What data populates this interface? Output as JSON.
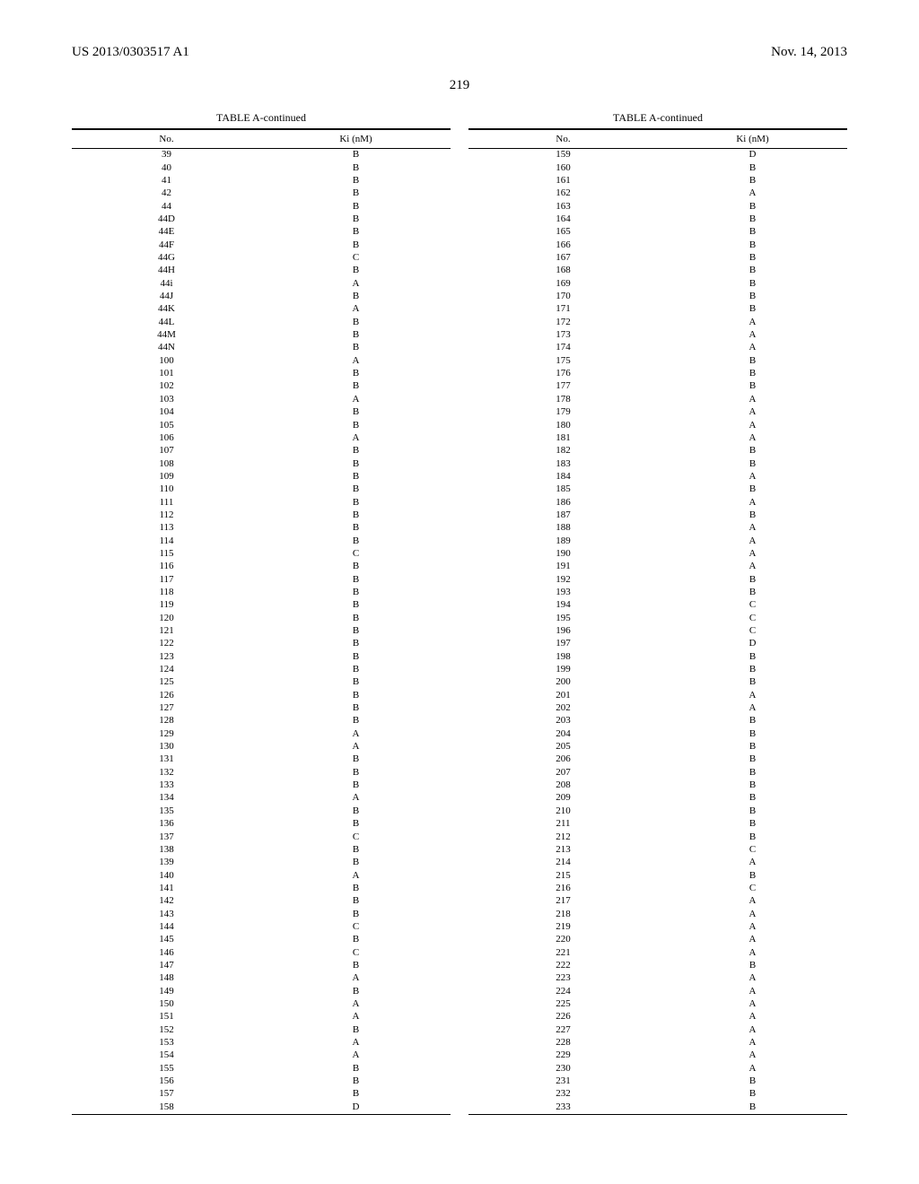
{
  "header": {
    "left": "US 2013/0303517 A1",
    "right": "Nov. 14, 2013"
  },
  "pageNumber": "219",
  "table": {
    "caption": "TABLE A-continued",
    "columns": {
      "no": "No.",
      "ki": "Ki (nM)"
    },
    "left": [
      {
        "no": "39",
        "ki": "B"
      },
      {
        "no": "40",
        "ki": "B"
      },
      {
        "no": "41",
        "ki": "B"
      },
      {
        "no": "42",
        "ki": "B"
      },
      {
        "no": "44",
        "ki": "B"
      },
      {
        "no": "44D",
        "ki": "B"
      },
      {
        "no": "44E",
        "ki": "B"
      },
      {
        "no": "44F",
        "ki": "B"
      },
      {
        "no": "44G",
        "ki": "C"
      },
      {
        "no": "44H",
        "ki": "B"
      },
      {
        "no": "44i",
        "ki": "A"
      },
      {
        "no": "44J",
        "ki": "B"
      },
      {
        "no": "44K",
        "ki": "A"
      },
      {
        "no": "44L",
        "ki": "B"
      },
      {
        "no": "44M",
        "ki": "B"
      },
      {
        "no": "44N",
        "ki": "B"
      },
      {
        "no": "100",
        "ki": "A"
      },
      {
        "no": "101",
        "ki": "B"
      },
      {
        "no": "102",
        "ki": "B"
      },
      {
        "no": "103",
        "ki": "A"
      },
      {
        "no": "104",
        "ki": "B"
      },
      {
        "no": "105",
        "ki": "B"
      },
      {
        "no": "106",
        "ki": "A"
      },
      {
        "no": "107",
        "ki": "B"
      },
      {
        "no": "108",
        "ki": "B"
      },
      {
        "no": "109",
        "ki": "B"
      },
      {
        "no": "110",
        "ki": "B"
      },
      {
        "no": "111",
        "ki": "B"
      },
      {
        "no": "112",
        "ki": "B"
      },
      {
        "no": "113",
        "ki": "B"
      },
      {
        "no": "114",
        "ki": "B"
      },
      {
        "no": "115",
        "ki": "C"
      },
      {
        "no": "116",
        "ki": "B"
      },
      {
        "no": "117",
        "ki": "B"
      },
      {
        "no": "118",
        "ki": "B"
      },
      {
        "no": "119",
        "ki": "B"
      },
      {
        "no": "120",
        "ki": "B"
      },
      {
        "no": "121",
        "ki": "B"
      },
      {
        "no": "122",
        "ki": "B"
      },
      {
        "no": "123",
        "ki": "B"
      },
      {
        "no": "124",
        "ki": "B"
      },
      {
        "no": "125",
        "ki": "B"
      },
      {
        "no": "126",
        "ki": "B"
      },
      {
        "no": "127",
        "ki": "B"
      },
      {
        "no": "128",
        "ki": "B"
      },
      {
        "no": "129",
        "ki": "A"
      },
      {
        "no": "130",
        "ki": "A"
      },
      {
        "no": "131",
        "ki": "B"
      },
      {
        "no": "132",
        "ki": "B"
      },
      {
        "no": "133",
        "ki": "B"
      },
      {
        "no": "134",
        "ki": "A"
      },
      {
        "no": "135",
        "ki": "B"
      },
      {
        "no": "136",
        "ki": "B"
      },
      {
        "no": "137",
        "ki": "C"
      },
      {
        "no": "138",
        "ki": "B"
      },
      {
        "no": "139",
        "ki": "B"
      },
      {
        "no": "140",
        "ki": "A"
      },
      {
        "no": "141",
        "ki": "B"
      },
      {
        "no": "142",
        "ki": "B"
      },
      {
        "no": "143",
        "ki": "B"
      },
      {
        "no": "144",
        "ki": "C"
      },
      {
        "no": "145",
        "ki": "B"
      },
      {
        "no": "146",
        "ki": "C"
      },
      {
        "no": "147",
        "ki": "B"
      },
      {
        "no": "148",
        "ki": "A"
      },
      {
        "no": "149",
        "ki": "B"
      },
      {
        "no": "150",
        "ki": "A"
      },
      {
        "no": "151",
        "ki": "A"
      },
      {
        "no": "152",
        "ki": "B"
      },
      {
        "no": "153",
        "ki": "A"
      },
      {
        "no": "154",
        "ki": "A"
      },
      {
        "no": "155",
        "ki": "B"
      },
      {
        "no": "156",
        "ki": "B"
      },
      {
        "no": "157",
        "ki": "B"
      },
      {
        "no": "158",
        "ki": "D"
      }
    ],
    "right": [
      {
        "no": "159",
        "ki": "D"
      },
      {
        "no": "160",
        "ki": "B"
      },
      {
        "no": "161",
        "ki": "B"
      },
      {
        "no": "162",
        "ki": "A"
      },
      {
        "no": "163",
        "ki": "B"
      },
      {
        "no": "164",
        "ki": "B"
      },
      {
        "no": "165",
        "ki": "B"
      },
      {
        "no": "166",
        "ki": "B"
      },
      {
        "no": "167",
        "ki": "B"
      },
      {
        "no": "168",
        "ki": "B"
      },
      {
        "no": "169",
        "ki": "B"
      },
      {
        "no": "170",
        "ki": "B"
      },
      {
        "no": "171",
        "ki": "B"
      },
      {
        "no": "172",
        "ki": "A"
      },
      {
        "no": "173",
        "ki": "A"
      },
      {
        "no": "174",
        "ki": "A"
      },
      {
        "no": "175",
        "ki": "B"
      },
      {
        "no": "176",
        "ki": "B"
      },
      {
        "no": "177",
        "ki": "B"
      },
      {
        "no": "178",
        "ki": "A"
      },
      {
        "no": "179",
        "ki": "A"
      },
      {
        "no": "180",
        "ki": "A"
      },
      {
        "no": "181",
        "ki": "A"
      },
      {
        "no": "182",
        "ki": "B"
      },
      {
        "no": "183",
        "ki": "B"
      },
      {
        "no": "184",
        "ki": "A"
      },
      {
        "no": "185",
        "ki": "B"
      },
      {
        "no": "186",
        "ki": "A"
      },
      {
        "no": "187",
        "ki": "B"
      },
      {
        "no": "188",
        "ki": "A"
      },
      {
        "no": "189",
        "ki": "A"
      },
      {
        "no": "190",
        "ki": "A"
      },
      {
        "no": "191",
        "ki": "A"
      },
      {
        "no": "192",
        "ki": "B"
      },
      {
        "no": "193",
        "ki": "B"
      },
      {
        "no": "194",
        "ki": "C"
      },
      {
        "no": "195",
        "ki": "C"
      },
      {
        "no": "196",
        "ki": "C"
      },
      {
        "no": "197",
        "ki": "D"
      },
      {
        "no": "198",
        "ki": "B"
      },
      {
        "no": "199",
        "ki": "B"
      },
      {
        "no": "200",
        "ki": "B"
      },
      {
        "no": "201",
        "ki": "A"
      },
      {
        "no": "202",
        "ki": "A"
      },
      {
        "no": "203",
        "ki": "B"
      },
      {
        "no": "204",
        "ki": "B"
      },
      {
        "no": "205",
        "ki": "B"
      },
      {
        "no": "206",
        "ki": "B"
      },
      {
        "no": "207",
        "ki": "B"
      },
      {
        "no": "208",
        "ki": "B"
      },
      {
        "no": "209",
        "ki": "B"
      },
      {
        "no": "210",
        "ki": "B"
      },
      {
        "no": "211",
        "ki": "B"
      },
      {
        "no": "212",
        "ki": "B"
      },
      {
        "no": "213",
        "ki": "C"
      },
      {
        "no": "214",
        "ki": "A"
      },
      {
        "no": "215",
        "ki": "B"
      },
      {
        "no": "216",
        "ki": "C"
      },
      {
        "no": "217",
        "ki": "A"
      },
      {
        "no": "218",
        "ki": "A"
      },
      {
        "no": "219",
        "ki": "A"
      },
      {
        "no": "220",
        "ki": "A"
      },
      {
        "no": "221",
        "ki": "A"
      },
      {
        "no": "222",
        "ki": "B"
      },
      {
        "no": "223",
        "ki": "A"
      },
      {
        "no": "224",
        "ki": "A"
      },
      {
        "no": "225",
        "ki": "A"
      },
      {
        "no": "226",
        "ki": "A"
      },
      {
        "no": "227",
        "ki": "A"
      },
      {
        "no": "228",
        "ki": "A"
      },
      {
        "no": "229",
        "ki": "A"
      },
      {
        "no": "230",
        "ki": "A"
      },
      {
        "no": "231",
        "ki": "B"
      },
      {
        "no": "232",
        "ki": "B"
      },
      {
        "no": "233",
        "ki": "B"
      }
    ]
  }
}
